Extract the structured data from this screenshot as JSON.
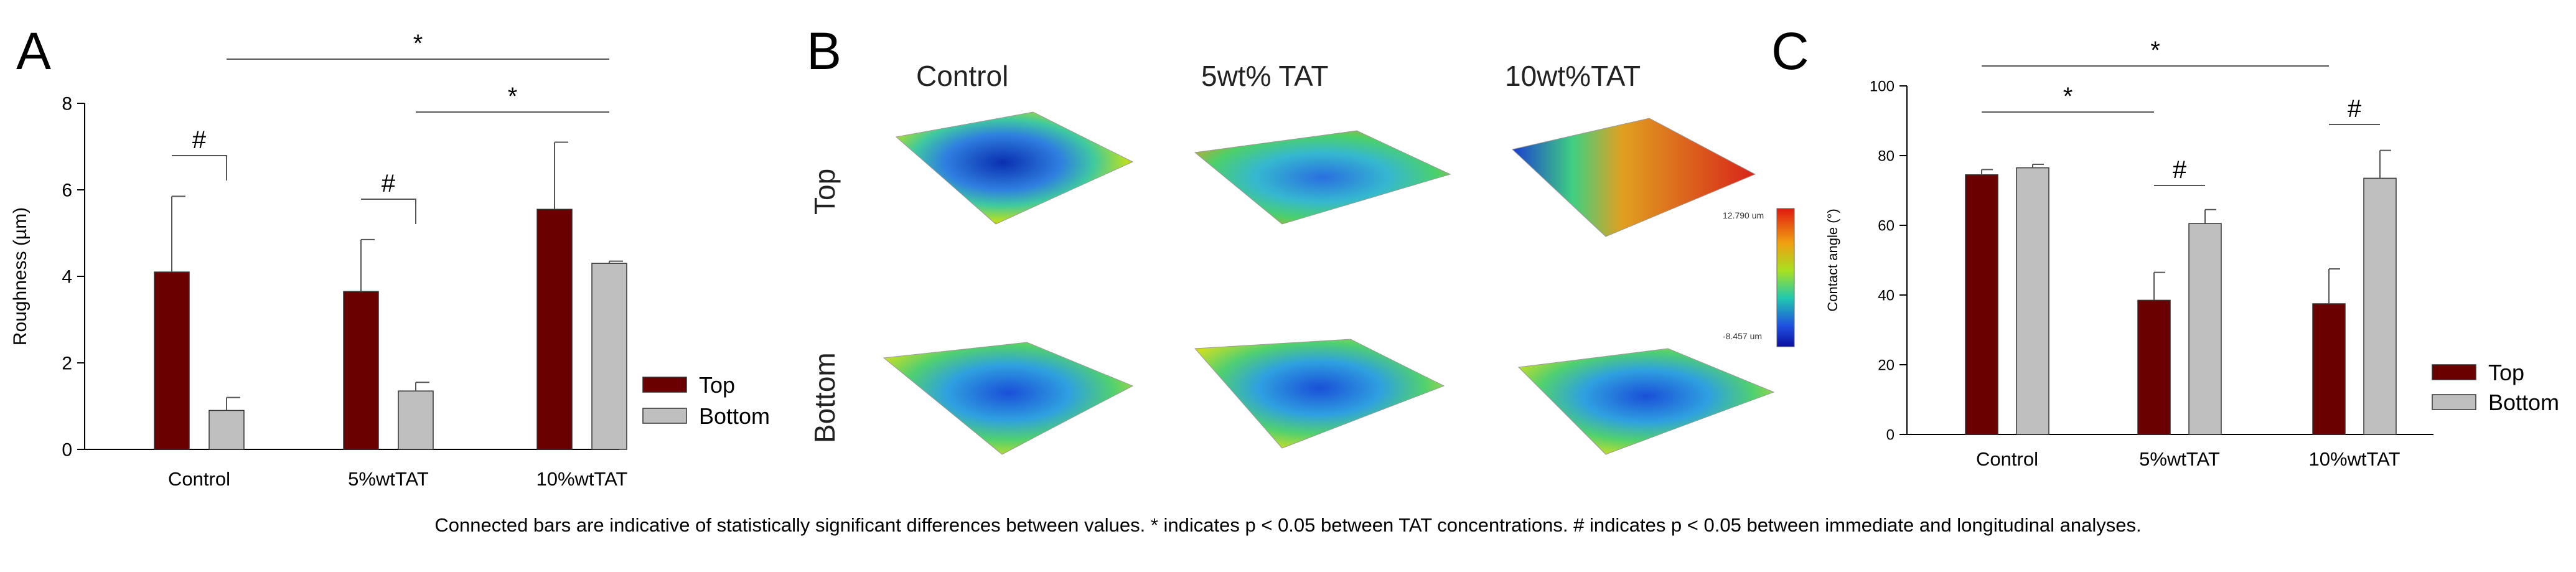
{
  "caption": "Connected bars are indicative of statistically significant differences between values. * indicates p < 0.05 between TAT concentrations. # indicates p < 0.05 between immediate and longitudinal analyses.",
  "colors": {
    "top": "#6b0000",
    "bottom": "#bfbfbf",
    "sig_line": "#555555"
  },
  "panel_a": {
    "letter": "A",
    "chart_data": {
      "type": "bar",
      "ylabel": "Roughness (µm)",
      "ylim": [
        0,
        8
      ],
      "yticks": [
        "0",
        "2",
        "4",
        "6",
        "8"
      ],
      "categories": [
        "Control",
        "5%wtTAT",
        "10%wtTAT"
      ],
      "series": [
        {
          "name": "Top",
          "values": [
            4.1,
            3.65,
            5.55
          ],
          "errors": [
            1.75,
            1.2,
            1.55
          ]
        },
        {
          "name": "Bottom",
          "values": [
            0.9,
            1.35,
            4.3
          ],
          "errors": [
            0.3,
            0.2,
            0.05
          ]
        }
      ],
      "significance": [
        {
          "symbol": "#",
          "from": "Control Top",
          "to": "Control Bottom"
        },
        {
          "symbol": "#",
          "from": "5%wtTAT Top",
          "to": "5%wtTAT Bottom"
        },
        {
          "symbol": "*",
          "from": "Control Bottom",
          "to": "10%wtTAT Bottom"
        },
        {
          "symbol": "*",
          "from": "5%wtTAT Bottom",
          "to": "10%wtTAT Bottom"
        }
      ],
      "legend": [
        "Top",
        "Bottom"
      ],
      "legend_position": "right"
    }
  },
  "panel_b": {
    "letter": "B",
    "columns": [
      "Control",
      "5wt% TAT",
      "10wt%TAT"
    ],
    "rows": [
      "Top",
      "Bottom"
    ],
    "colorbar_max": "12.790 um",
    "colorbar_min": "-8.457 um"
  },
  "panel_c": {
    "letter": "C",
    "chart_data": {
      "type": "bar",
      "ylabel": "Contact angle (°)",
      "ylim": [
        0,
        100
      ],
      "yticks": [
        "0",
        "20",
        "40",
        "60",
        "80",
        "100"
      ],
      "categories": [
        "Control",
        "5%wtTAT",
        "10%wtTAT"
      ],
      "series": [
        {
          "name": "Top",
          "values": [
            74.5,
            38.5,
            37.5
          ],
          "errors": [
            1.5,
            8,
            10
          ]
        },
        {
          "name": "Bottom",
          "values": [
            76.5,
            60.5,
            73.5
          ],
          "errors": [
            1,
            4,
            8
          ]
        }
      ],
      "significance": [
        {
          "symbol": "*",
          "from": "Control Top",
          "to": "5%wtTAT Top"
        },
        {
          "symbol": "#",
          "from": "5%wtTAT Top",
          "to": "5%wtTAT Bottom"
        },
        {
          "symbol": "*",
          "from": "Control Top",
          "to": "10%wtTAT Top"
        },
        {
          "symbol": "#",
          "from": "10%wtTAT Top",
          "to": "10%wtTAT Bottom"
        }
      ],
      "legend": [
        "Top",
        "Bottom"
      ],
      "legend_position": "right"
    }
  }
}
